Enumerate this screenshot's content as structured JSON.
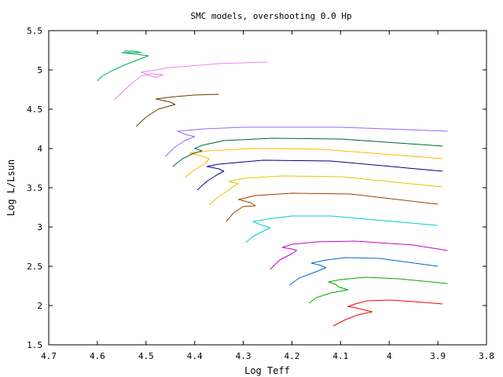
{
  "chart_data": {
    "type": "line",
    "title": "SMC models, overshooting 0.0 Hp",
    "xlabel": "Log Teff",
    "ylabel": "Log L/Lsun",
    "xlim": [
      4.7,
      3.8
    ],
    "ylim": [
      1.5,
      5.5
    ],
    "x_reversed": true,
    "xticks": [
      "4.7",
      "4.6",
      "4.5",
      "4.4",
      "4.3",
      "4.2",
      "4.1",
      "4",
      "3.9",
      "3.8"
    ],
    "yticks": [
      "1.5",
      "2",
      "2.5",
      "3",
      "3.5",
      "4",
      "4.5",
      "5",
      "5.5"
    ],
    "grid": false,
    "legend": "none",
    "series": [
      {
        "color": "#ff0000",
        "points": [
          [
            4.115,
            1.74
          ],
          [
            4.09,
            1.82
          ],
          [
            4.065,
            1.88
          ],
          [
            4.035,
            1.92
          ],
          [
            4.055,
            1.95
          ],
          [
            4.075,
            1.98
          ],
          [
            4.085,
            1.985
          ],
          [
            4.07,
            2.02
          ],
          [
            4.045,
            2.06
          ],
          [
            4.0,
            2.07
          ],
          [
            3.95,
            2.05
          ],
          [
            3.89,
            2.02
          ]
        ]
      },
      {
        "color": "#00aa00",
        "points": [
          [
            4.165,
            2.03
          ],
          [
            4.15,
            2.1
          ],
          [
            4.12,
            2.16
          ],
          [
            4.085,
            2.2
          ],
          [
            4.105,
            2.24
          ],
          [
            4.11,
            2.27
          ],
          [
            4.125,
            2.3
          ],
          [
            4.1,
            2.33
          ],
          [
            4.05,
            2.36
          ],
          [
            3.98,
            2.34
          ],
          [
            3.88,
            2.28
          ]
        ]
      },
      {
        "color": "#0066cc",
        "points": [
          [
            4.205,
            2.26
          ],
          [
            4.185,
            2.35
          ],
          [
            4.155,
            2.42
          ],
          [
            4.13,
            2.48
          ],
          [
            4.14,
            2.51
          ],
          [
            4.16,
            2.54
          ],
          [
            4.13,
            2.58
          ],
          [
            4.09,
            2.61
          ],
          [
            4.02,
            2.6
          ],
          [
            3.9,
            2.5
          ]
        ]
      },
      {
        "color": "#cc00cc",
        "points": [
          [
            4.245,
            2.46
          ],
          [
            4.225,
            2.58
          ],
          [
            4.2,
            2.66
          ],
          [
            4.19,
            2.7
          ],
          [
            4.2,
            2.72
          ],
          [
            4.22,
            2.74
          ],
          [
            4.2,
            2.78
          ],
          [
            4.15,
            2.81
          ],
          [
            4.07,
            2.82
          ],
          [
            3.95,
            2.77
          ],
          [
            3.88,
            2.7
          ]
        ]
      },
      {
        "color": "#00cccc",
        "points": [
          [
            4.295,
            2.8
          ],
          [
            4.28,
            2.88
          ],
          [
            4.255,
            2.96
          ],
          [
            4.245,
            2.99
          ],
          [
            4.265,
            3.03
          ],
          [
            4.28,
            3.07
          ],
          [
            4.25,
            3.1
          ],
          [
            4.2,
            3.14
          ],
          [
            4.12,
            3.14
          ],
          [
            3.9,
            3.02
          ]
        ]
      },
      {
        "color": "#994400",
        "points": [
          [
            4.335,
            3.07
          ],
          [
            4.32,
            3.18
          ],
          [
            4.3,
            3.26
          ],
          [
            4.275,
            3.27
          ],
          [
            4.285,
            3.31
          ],
          [
            4.31,
            3.35
          ],
          [
            4.275,
            3.4
          ],
          [
            4.2,
            3.43
          ],
          [
            4.08,
            3.42
          ],
          [
            3.9,
            3.29
          ]
        ]
      },
      {
        "color": "#e6c800",
        "points": [
          [
            4.37,
            3.28
          ],
          [
            4.35,
            3.39
          ],
          [
            4.33,
            3.47
          ],
          [
            4.32,
            3.52
          ],
          [
            4.31,
            3.55
          ],
          [
            4.33,
            3.58
          ],
          [
            4.3,
            3.62
          ],
          [
            4.22,
            3.65
          ],
          [
            4.1,
            3.64
          ],
          [
            3.89,
            3.51
          ]
        ]
      },
      {
        "color": "#00008b",
        "points": [
          [
            4.395,
            3.47
          ],
          [
            4.375,
            3.58
          ],
          [
            4.355,
            3.66
          ],
          [
            4.34,
            3.71
          ],
          [
            4.35,
            3.74
          ],
          [
            4.375,
            3.77
          ],
          [
            4.35,
            3.8
          ],
          [
            4.26,
            3.85
          ],
          [
            4.12,
            3.84
          ],
          [
            3.89,
            3.71
          ]
        ]
      },
      {
        "color": "#ffb800",
        "points": [
          [
            4.42,
            3.63
          ],
          [
            4.4,
            3.73
          ],
          [
            4.38,
            3.8
          ],
          [
            4.37,
            3.87
          ],
          [
            4.39,
            3.91
          ],
          [
            4.41,
            3.94
          ],
          [
            4.37,
            3.97
          ],
          [
            4.28,
            4.0
          ],
          [
            4.14,
            3.99
          ],
          [
            3.89,
            3.87
          ]
        ]
      },
      {
        "color": "#006633",
        "points": [
          [
            4.445,
            3.77
          ],
          [
            4.425,
            3.87
          ],
          [
            4.405,
            3.93
          ],
          [
            4.385,
            3.97
          ],
          [
            4.4,
            4.0
          ],
          [
            4.385,
            4.04
          ],
          [
            4.34,
            4.1
          ],
          [
            4.24,
            4.13
          ],
          [
            4.1,
            4.12
          ],
          [
            3.89,
            4.03
          ]
        ]
      },
      {
        "color": "#9966ff",
        "points": [
          [
            4.46,
            3.9
          ],
          [
            4.44,
            4.02
          ],
          [
            4.42,
            4.1
          ],
          [
            4.4,
            4.15
          ],
          [
            4.42,
            4.18
          ],
          [
            4.435,
            4.22
          ],
          [
            4.38,
            4.25
          ],
          [
            4.3,
            4.27
          ],
          [
            4.1,
            4.27
          ],
          [
            3.88,
            4.22
          ]
        ]
      },
      {
        "color": "#6b3a00",
        "points": [
          [
            4.52,
            4.28
          ],
          [
            4.5,
            4.4
          ],
          [
            4.475,
            4.5
          ],
          [
            4.44,
            4.56
          ],
          [
            4.45,
            4.59
          ],
          [
            4.48,
            4.63
          ],
          [
            4.44,
            4.66
          ],
          [
            4.4,
            4.68
          ],
          [
            4.35,
            4.69
          ]
        ]
      },
      {
        "color": "#ee82ee",
        "points": [
          [
            4.565,
            4.62
          ],
          [
            4.545,
            4.74
          ],
          [
            4.525,
            4.85
          ],
          [
            4.51,
            4.92
          ],
          [
            4.49,
            4.95
          ],
          [
            4.465,
            4.94
          ],
          [
            4.48,
            4.9
          ],
          [
            4.51,
            4.97
          ],
          [
            4.45,
            5.03
          ],
          [
            4.35,
            5.08
          ],
          [
            4.25,
            5.1
          ]
        ]
      },
      {
        "color": "#00aa55",
        "points": [
          [
            4.6,
            4.86
          ],
          [
            4.59,
            4.92
          ],
          [
            4.57,
            4.99
          ],
          [
            4.545,
            5.06
          ],
          [
            4.52,
            5.12
          ],
          [
            4.495,
            5.18
          ],
          [
            4.52,
            5.2
          ],
          [
            4.55,
            5.22
          ],
          [
            4.51,
            5.22
          ],
          [
            4.525,
            5.24
          ],
          [
            4.545,
            5.24
          ]
        ]
      }
    ]
  }
}
